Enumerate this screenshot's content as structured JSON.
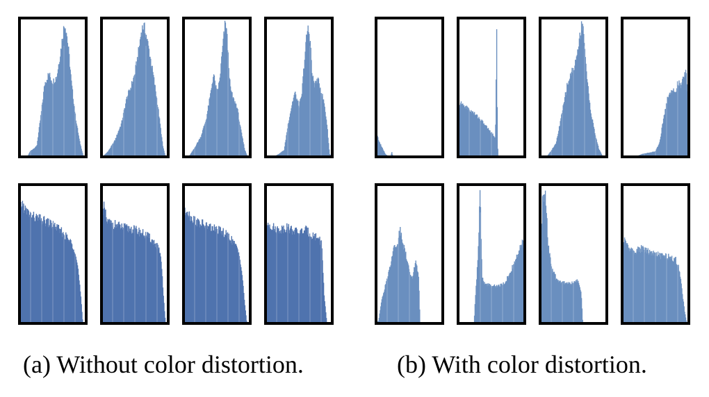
{
  "captions": {
    "a": "(a) Without color distortion.",
    "b": "(b) With color distortion."
  },
  "colors": {
    "fill": "#6a8fbf",
    "fill_dark": "#4f73ae",
    "frame": "#000000"
  },
  "chart_data": [
    {
      "type": "area",
      "panel": "a",
      "row": 1,
      "ylim": [
        0,
        100
      ],
      "xlim": [
        0,
        1
      ],
      "histograms": [
        {
          "shape": [
            [
              0,
              0
            ],
            [
              0.12,
              0
            ],
            [
              0.16,
              4
            ],
            [
              0.26,
              8
            ],
            [
              0.32,
              30
            ],
            [
              0.38,
              55
            ],
            [
              0.44,
              62
            ],
            [
              0.5,
              56
            ],
            [
              0.56,
              60
            ],
            [
              0.62,
              80
            ],
            [
              0.66,
              95
            ],
            [
              0.68,
              100
            ],
            [
              0.7,
              96
            ],
            [
              0.74,
              78
            ],
            [
              0.78,
              55
            ],
            [
              0.84,
              30
            ],
            [
              0.9,
              12
            ],
            [
              0.96,
              0
            ],
            [
              1,
              0
            ]
          ]
        },
        {
          "shape": [
            [
              0,
              0
            ],
            [
              0.02,
              0
            ],
            [
              0.1,
              4
            ],
            [
              0.2,
              12
            ],
            [
              0.3,
              25
            ],
            [
              0.38,
              44
            ],
            [
              0.44,
              52
            ],
            [
              0.5,
              62
            ],
            [
              0.56,
              80
            ],
            [
              0.6,
              95
            ],
            [
              0.63,
              98
            ],
            [
              0.66,
              94
            ],
            [
              0.72,
              78
            ],
            [
              0.78,
              60
            ],
            [
              0.84,
              40
            ],
            [
              0.88,
              24
            ],
            [
              0.92,
              8
            ],
            [
              0.96,
              0
            ],
            [
              1,
              0
            ]
          ]
        },
        {
          "shape": [
            [
              0,
              0
            ],
            [
              0.08,
              0
            ],
            [
              0.16,
              6
            ],
            [
              0.26,
              15
            ],
            [
              0.34,
              28
            ],
            [
              0.4,
              45
            ],
            [
              0.45,
              62
            ],
            [
              0.5,
              48
            ],
            [
              0.54,
              56
            ],
            [
              0.58,
              78
            ],
            [
              0.62,
              98
            ],
            [
              0.64,
              100
            ],
            [
              0.66,
              84
            ],
            [
              0.7,
              52
            ],
            [
              0.74,
              44
            ],
            [
              0.8,
              38
            ],
            [
              0.86,
              20
            ],
            [
              0.92,
              5
            ],
            [
              0.96,
              0
            ],
            [
              1,
              0
            ]
          ]
        },
        {
          "shape": [
            [
              0,
              0
            ],
            [
              0.12,
              0
            ],
            [
              0.2,
              2
            ],
            [
              0.28,
              5
            ],
            [
              0.34,
              25
            ],
            [
              0.4,
              40
            ],
            [
              0.44,
              48
            ],
            [
              0.5,
              38
            ],
            [
              0.54,
              44
            ],
            [
              0.58,
              70
            ],
            [
              0.62,
              92
            ],
            [
              0.64,
              96
            ],
            [
              0.67,
              88
            ],
            [
              0.7,
              60
            ],
            [
              0.74,
              54
            ],
            [
              0.78,
              58
            ],
            [
              0.82,
              52
            ],
            [
              0.88,
              40
            ],
            [
              0.92,
              25
            ],
            [
              0.96,
              2
            ],
            [
              1,
              0
            ]
          ]
        }
      ]
    },
    {
      "type": "area",
      "panel": "a",
      "row": 2,
      "ylim": [
        0,
        100
      ],
      "xlim": [
        0,
        1
      ],
      "histograms": [
        {
          "shape": [
            [
              0,
              86
            ],
            [
              0.04,
              90
            ],
            [
              0.1,
              84
            ],
            [
              0.2,
              80
            ],
            [
              0.3,
              78
            ],
            [
              0.4,
              76
            ],
            [
              0.5,
              74
            ],
            [
              0.6,
              70
            ],
            [
              0.7,
              65
            ],
            [
              0.78,
              60
            ],
            [
              0.84,
              54
            ],
            [
              0.88,
              40
            ],
            [
              0.92,
              20
            ],
            [
              0.95,
              0
            ],
            [
              1,
              0
            ]
          ]
        },
        {
          "shape": [
            [
              0,
              70
            ],
            [
              0.04,
              88
            ],
            [
              0.08,
              76
            ],
            [
              0.2,
              74
            ],
            [
              0.3,
              72
            ],
            [
              0.4,
              71
            ],
            [
              0.5,
              70
            ],
            [
              0.6,
              68
            ],
            [
              0.7,
              65
            ],
            [
              0.8,
              60
            ],
            [
              0.86,
              56
            ],
            [
              0.9,
              44
            ],
            [
              0.93,
              20
            ],
            [
              0.96,
              0
            ],
            [
              1,
              0
            ]
          ]
        },
        {
          "shape": [
            [
              0,
              80
            ],
            [
              0.05,
              86
            ],
            [
              0.1,
              80
            ],
            [
              0.2,
              76
            ],
            [
              0.3,
              74
            ],
            [
              0.4,
              72
            ],
            [
              0.5,
              70
            ],
            [
              0.6,
              68
            ],
            [
              0.7,
              64
            ],
            [
              0.78,
              58
            ],
            [
              0.84,
              52
            ],
            [
              0.88,
              36
            ],
            [
              0.92,
              14
            ],
            [
              0.95,
              0
            ],
            [
              1,
              0
            ]
          ]
        },
        {
          "shape": [
            [
              0,
              70
            ],
            [
              0.04,
              76
            ],
            [
              0.1,
              72
            ],
            [
              0.2,
              70
            ],
            [
              0.3,
              72
            ],
            [
              0.4,
              70
            ],
            [
              0.5,
              68
            ],
            [
              0.6,
              70
            ],
            [
              0.7,
              66
            ],
            [
              0.8,
              64
            ],
            [
              0.84,
              60
            ],
            [
              0.86,
              42
            ],
            [
              0.88,
              20
            ],
            [
              0.92,
              0
            ],
            [
              1,
              0
            ]
          ]
        }
      ]
    },
    {
      "type": "area",
      "panel": "b",
      "row": 1,
      "ylim": [
        0,
        100
      ],
      "xlim": [
        0,
        1
      ],
      "histograms": [
        {
          "shape": [
            [
              0,
              22
            ],
            [
              0.03,
              14
            ],
            [
              0.06,
              10
            ],
            [
              0.1,
              6
            ],
            [
              0.14,
              2
            ],
            [
              0.18,
              0.5
            ],
            [
              0.22,
              0.5
            ],
            [
              0.24,
              4
            ],
            [
              0.25,
              0
            ],
            [
              1,
              0
            ]
          ]
        },
        {
          "shape": [
            [
              0,
              36
            ],
            [
              0.04,
              40
            ],
            [
              0.1,
              38
            ],
            [
              0.2,
              34
            ],
            [
              0.3,
              30
            ],
            [
              0.4,
              24
            ],
            [
              0.5,
              18
            ],
            [
              0.56,
              14
            ],
            [
              0.58,
              100
            ],
            [
              0.59,
              14
            ],
            [
              0.6,
              0
            ],
            [
              1,
              0
            ]
          ]
        },
        {
          "shape": [
            [
              0,
              0
            ],
            [
              0.1,
              0
            ],
            [
              0.16,
              4
            ],
            [
              0.24,
              10
            ],
            [
              0.32,
              30
            ],
            [
              0.4,
              52
            ],
            [
              0.46,
              62
            ],
            [
              0.52,
              68
            ],
            [
              0.58,
              84
            ],
            [
              0.62,
              98
            ],
            [
              0.64,
              100
            ],
            [
              0.66,
              90
            ],
            [
              0.7,
              60
            ],
            [
              0.76,
              34
            ],
            [
              0.82,
              18
            ],
            [
              0.88,
              6
            ],
            [
              0.94,
              0
            ],
            [
              1,
              0
            ]
          ]
        },
        {
          "shape": [
            [
              0,
              0
            ],
            [
              0.2,
              0
            ],
            [
              0.3,
              2
            ],
            [
              0.4,
              3
            ],
            [
              0.5,
              4
            ],
            [
              0.56,
              10
            ],
            [
              0.62,
              28
            ],
            [
              0.68,
              44
            ],
            [
              0.74,
              50
            ],
            [
              0.8,
              48
            ],
            [
              0.84,
              56
            ],
            [
              0.88,
              52
            ],
            [
              0.92,
              60
            ],
            [
              0.96,
              64
            ],
            [
              0.98,
              50
            ],
            [
              1,
              44
            ]
          ]
        }
      ]
    },
    {
      "type": "area",
      "panel": "b",
      "row": 2,
      "ylim": [
        0,
        100
      ],
      "xlim": [
        0,
        1
      ],
      "histograms": [
        {
          "shape": [
            [
              0,
              0
            ],
            [
              0.04,
              2
            ],
            [
              0.08,
              16
            ],
            [
              0.14,
              28
            ],
            [
              0.2,
              40
            ],
            [
              0.26,
              56
            ],
            [
              0.32,
              60
            ],
            [
              0.36,
              70
            ],
            [
              0.4,
              60
            ],
            [
              0.44,
              54
            ],
            [
              0.5,
              40
            ],
            [
              0.54,
              34
            ],
            [
              0.6,
              46
            ],
            [
              0.64,
              36
            ],
            [
              0.66,
              0
            ],
            [
              1,
              0
            ]
          ]
        },
        {
          "shape": [
            [
              0,
              0
            ],
            [
              0.24,
              0
            ],
            [
              0.26,
              20
            ],
            [
              0.3,
              50
            ],
            [
              0.33,
              100
            ],
            [
              0.36,
              34
            ],
            [
              0.4,
              30
            ],
            [
              0.5,
              28
            ],
            [
              0.6,
              28
            ],
            [
              0.7,
              30
            ],
            [
              0.8,
              40
            ],
            [
              0.9,
              52
            ],
            [
              0.96,
              60
            ],
            [
              1,
              58
            ]
          ]
        },
        {
          "shape": [
            [
              0,
              0
            ],
            [
              0.04,
              100
            ],
            [
              0.06,
              92
            ],
            [
              0.08,
              100
            ],
            [
              0.12,
              60
            ],
            [
              0.18,
              40
            ],
            [
              0.26,
              32
            ],
            [
              0.4,
              30
            ],
            [
              0.5,
              30
            ],
            [
              0.56,
              32
            ],
            [
              0.6,
              28
            ],
            [
              0.62,
              20
            ],
            [
              0.64,
              0
            ],
            [
              1,
              0
            ]
          ]
        },
        {
          "shape": [
            [
              0,
              60
            ],
            [
              0.05,
              62
            ],
            [
              0.1,
              56
            ],
            [
              0.2,
              54
            ],
            [
              0.3,
              56
            ],
            [
              0.4,
              54
            ],
            [
              0.5,
              52
            ],
            [
              0.6,
              50
            ],
            [
              0.7,
              50
            ],
            [
              0.8,
              48
            ],
            [
              0.86,
              40
            ],
            [
              0.9,
              24
            ],
            [
              0.94,
              8
            ],
            [
              0.97,
              0
            ],
            [
              1,
              0
            ]
          ]
        }
      ]
    }
  ]
}
